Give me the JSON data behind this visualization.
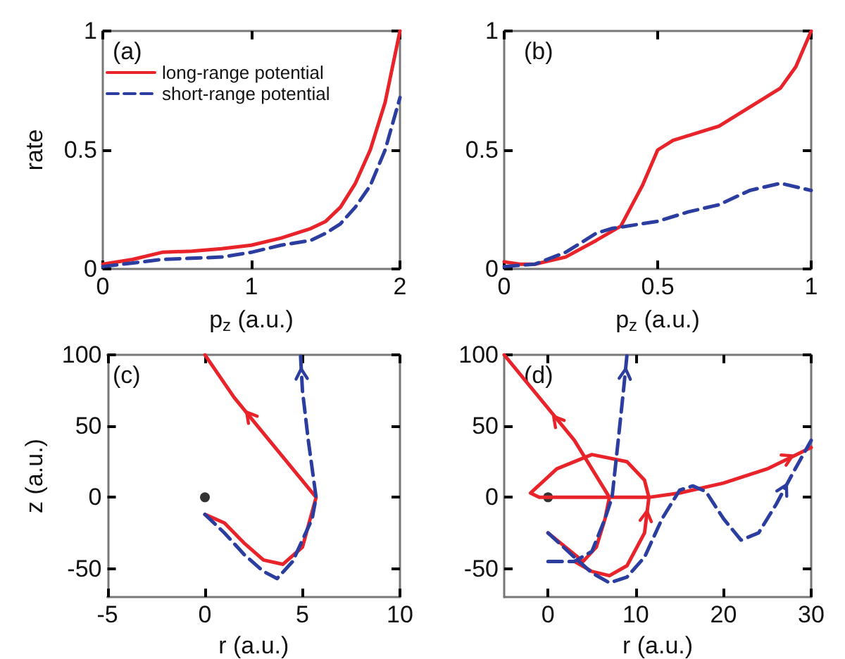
{
  "chart_data": [
    {
      "type": "line",
      "annotations": [
        "(a)"
      ],
      "xlabel": "p$_{z}$ (a.u.)",
      "ylabel": "rate",
      "xlim": [
        0,
        2
      ],
      "xticks": [
        0,
        1,
        2
      ],
      "ylim": [
        0,
        1
      ],
      "yticks": [
        0,
        0.5,
        1
      ],
      "grid": false,
      "legend": "top left",
      "series": [
        {
          "name": "long-range potential",
          "color": "#e8242a",
          "line_style": "solid",
          "x": [
            0,
            0.2,
            0.4,
            0.6,
            0.8,
            1.0,
            1.2,
            1.4,
            1.5,
            1.6,
            1.7,
            1.8,
            1.9,
            2
          ],
          "values": [
            0.02,
            0.04,
            0.07,
            0.075,
            0.085,
            0.1,
            0.13,
            0.17,
            0.2,
            0.26,
            0.36,
            0.5,
            0.7,
            1
          ]
        },
        {
          "name": "short-range potential",
          "color": "#2b3ea0",
          "line_style": "dashed",
          "x": [
            0,
            0.4,
            0.8,
            1.0,
            1.2,
            1.4,
            1.5,
            1.6,
            1.7,
            1.8,
            1.9,
            2
          ],
          "values": [
            0.01,
            0.04,
            0.05,
            0.07,
            0.1,
            0.12,
            0.15,
            0.19,
            0.26,
            0.35,
            0.5,
            0.72
          ]
        }
      ]
    },
    {
      "type": "line",
      "annotations": [
        "(b)"
      ],
      "xlabel": "p$_{z}$ (a.u.)",
      "xlim": [
        0,
        1
      ],
      "xticks": [
        0,
        0.5,
        1
      ],
      "ylim": [
        0,
        1
      ],
      "yticks": [
        0,
        0.5,
        1
      ],
      "grid": false,
      "series": [
        {
          "color": "#e8242a",
          "line_style": "solid",
          "x": [
            0,
            0.05,
            0.1,
            0.2,
            0.3,
            0.38,
            0.45,
            0.5,
            0.55,
            0.6,
            0.7,
            0.8,
            0.9,
            0.95,
            1
          ],
          "values": [
            0.03,
            0.02,
            0.02,
            0.05,
            0.12,
            0.18,
            0.35,
            0.5,
            0.54,
            0.56,
            0.6,
            0.68,
            0.76,
            0.85,
            1
          ]
        },
        {
          "color": "#2b3ea0",
          "line_style": "dashed",
          "x": [
            0,
            0.1,
            0.2,
            0.3,
            0.35,
            0.5,
            0.6,
            0.7,
            0.8,
            0.9,
            1
          ],
          "values": [
            0.01,
            0.02,
            0.07,
            0.15,
            0.17,
            0.2,
            0.24,
            0.27,
            0.33,
            0.36,
            0.33
          ]
        }
      ]
    },
    {
      "type": "line",
      "annotations": [
        "(c)"
      ],
      "xlabel": "r (a.u.)",
      "ylabel": "z (a.u.)",
      "xlim": [
        -5,
        10
      ],
      "xticks": [
        -5,
        0,
        5,
        10
      ],
      "ylim": [
        -70,
        100
      ],
      "yticks": [
        -50,
        0,
        50,
        100
      ],
      "grid": false,
      "series": [
        {
          "color": "#e8242a",
          "line_style": "solid",
          "x": [
            0,
            1,
            2,
            3,
            4,
            5,
            5.7,
            3,
            1.5,
            0
          ],
          "values": [
            -12,
            -18,
            -32,
            -44,
            -47,
            -35,
            0,
            45,
            70,
            100
          ]
        },
        {
          "color": "#2b3ea0",
          "line_style": "dashed",
          "x": [
            0,
            1,
            2,
            3,
            3.7,
            4.5,
            5.5,
            5.7,
            5.3,
            5,
            4.9
          ],
          "values": [
            -12,
            -25,
            -40,
            -52,
            -57,
            -45,
            -15,
            0,
            40,
            75,
            100
          ]
        },
        {
          "type": "scatter",
          "color": "#000000",
          "marker": "circle",
          "x": [
            0
          ],
          "values": [
            0
          ]
        }
      ]
    },
    {
      "type": "line",
      "annotations": [
        "(d)"
      ],
      "xlabel": "r (a.u.)",
      "xlim": [
        -5,
        30
      ],
      "xticks": [
        0,
        10,
        20,
        30
      ],
      "ylim": [
        -70,
        100
      ],
      "yticks": [
        -50,
        0,
        50,
        100
      ],
      "grid": false,
      "series": [
        {
          "color": "#e8242a",
          "line_style": "solid",
          "x": [
            3,
            5,
            7,
            9,
            11,
            11.5,
            11,
            9,
            5,
            1,
            -2,
            -1,
            3,
            7,
            11.5,
            15,
            20,
            25,
            30
          ],
          "values": [
            -45,
            -52,
            -55,
            -48,
            -25,
            0,
            12,
            25,
            30,
            20,
            3,
            0,
            0,
            0,
            0,
            3,
            10,
            20,
            35
          ]
        },
        {
          "color": "#e8242a",
          "line_style": "solid",
          "x": [
            0,
            2,
            4,
            5.5,
            6.5,
            7,
            3,
            -1,
            -5
          ],
          "values": [
            -25,
            -35,
            -45,
            -35,
            -15,
            0,
            40,
            70,
            100
          ]
        },
        {
          "color": "#2b3ea0",
          "line_style": "dashed",
          "x": [
            0,
            3,
            5,
            7,
            9,
            11,
            13,
            15,
            16.5,
            18,
            20,
            22,
            24,
            26,
            28,
            30
          ],
          "values": [
            -25,
            -42,
            -53,
            -60,
            -56,
            -42,
            -15,
            5,
            8,
            4,
            -15,
            -30,
            -25,
            -5,
            18,
            40
          ]
        },
        {
          "color": "#2b3ea0",
          "line_style": "dashed",
          "x": [
            0,
            3,
            5,
            6.5,
            7.3,
            8,
            8.6,
            9
          ],
          "values": [
            -45,
            -45,
            -38,
            -15,
            0,
            40,
            75,
            100
          ]
        },
        {
          "type": "scatter",
          "color": "#000000",
          "marker": "circle",
          "x": [
            0
          ],
          "values": [
            0
          ]
        }
      ]
    }
  ]
}
